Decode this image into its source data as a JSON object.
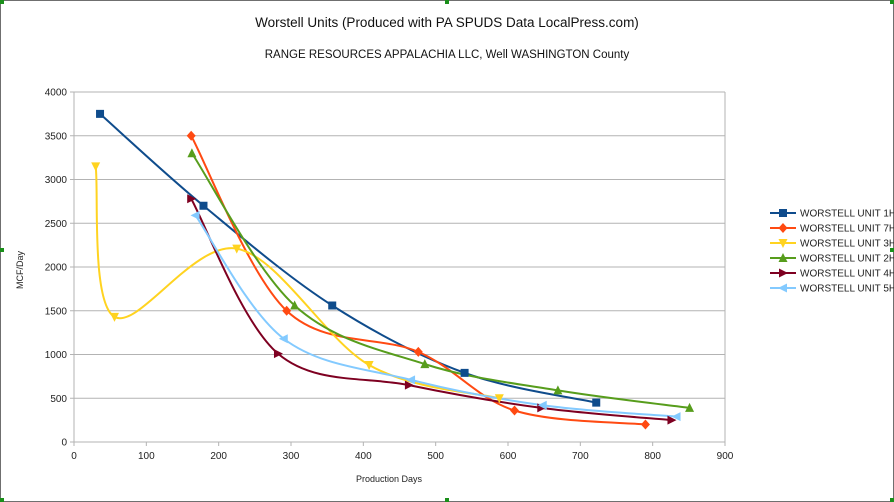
{
  "chart_data": {
    "type": "line",
    "title": "Worstell Units (Produced with PA SPUDS Data LocalPress.com)",
    "subtitle": "RANGE RESOURCES APPALACHIA LLC, Well  WASHINGTON County",
    "xlabel": "Production Days",
    "ylabel": "MCF/Day",
    "xlim": [
      0,
      900
    ],
    "ylim": [
      0,
      4000
    ],
    "xticks": [
      0,
      100,
      200,
      300,
      400,
      500,
      600,
      700,
      800,
      900
    ],
    "yticks": [
      0,
      500,
      1000,
      1500,
      2000,
      2500,
      3000,
      3500,
      4000
    ],
    "grid": "horizontal",
    "legend_position": "right",
    "series": [
      {
        "name": "WORSTELL UNIT 1H",
        "color": "#0f4c8c",
        "marker": "square",
        "points": [
          [
            36,
            3750
          ],
          [
            179,
            2700
          ],
          [
            357,
            1560
          ],
          [
            540,
            790
          ],
          [
            722,
            450
          ]
        ]
      },
      {
        "name": "WORSTELL UNIT 7H",
        "color": "#ff4a12",
        "marker": "diamond",
        "points": [
          [
            162,
            3500
          ],
          [
            294,
            1500
          ],
          [
            476,
            1030
          ],
          [
            609,
            360
          ],
          [
            790,
            200
          ]
        ]
      },
      {
        "name": "WORSTELL UNIT 3H",
        "color": "#ffd320",
        "marker": "triangle-down",
        "points": [
          [
            30,
            3150
          ],
          [
            56,
            1430
          ],
          [
            225,
            2210
          ],
          [
            408,
            880
          ],
          [
            588,
            500
          ]
        ]
      },
      {
        "name": "WORSTELL UNIT 2H",
        "color": "#579d1c",
        "marker": "triangle-up",
        "points": [
          [
            163,
            3300
          ],
          [
            305,
            1560
          ],
          [
            485,
            890
          ],
          [
            669,
            590
          ],
          [
            851,
            390
          ]
        ]
      },
      {
        "name": "WORSTELL UNIT 4H",
        "color": "#7e0021",
        "marker": "triangle-right",
        "points": [
          [
            162,
            2780
          ],
          [
            282,
            1010
          ],
          [
            463,
            650
          ],
          [
            646,
            390
          ],
          [
            826,
            250
          ]
        ]
      },
      {
        "name": "WORSTELL UNIT 5H",
        "color": "#83caff",
        "marker": "triangle-left",
        "points": [
          [
            168,
            2590
          ],
          [
            290,
            1180
          ],
          [
            466,
            710
          ],
          [
            648,
            420
          ],
          [
            833,
            290
          ]
        ]
      }
    ]
  }
}
